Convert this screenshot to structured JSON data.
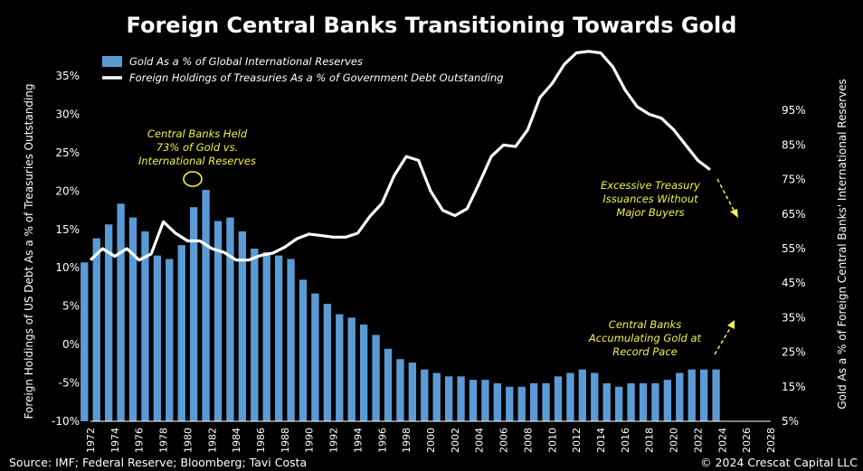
{
  "chart_data": {
    "type": "bar+line",
    "title": "Foreign Central Banks Transitioning Towards Gold",
    "ylabel_left": "Foreign Holdings of US Debt As a % of  Treasuries Outstanding",
    "ylabel_right": "Gold As a % of Foreign Central Banks' International Reserves",
    "left_ticks": [
      "35%",
      "30%",
      "25%",
      "20%",
      "15%",
      "10%",
      "5%",
      "0%",
      "-5%",
      "-10%"
    ],
    "right_ticks": [
      "95%",
      "85%",
      "75%",
      "65%",
      "55%",
      "45%",
      "35%",
      "25%",
      "15%",
      "5%"
    ],
    "left_ylim": [
      -10,
      35
    ],
    "right_ylim": [
      5,
      105
    ],
    "xlim": [
      1972,
      2028
    ],
    "x_ticks": [
      "1972",
      "1974",
      "1976",
      "1978",
      "1980",
      "1982",
      "1984",
      "1986",
      "1988",
      "1990",
      "1992",
      "1994",
      "1996",
      "1998",
      "2000",
      "2002",
      "2004",
      "2006",
      "2008",
      "2010",
      "2012",
      "2014",
      "2016",
      "2018",
      "2020",
      "2022",
      "2024",
      "2026",
      "2028"
    ],
    "grid": false,
    "legend_position": "top-left",
    "series": [
      {
        "name": "Gold As a % of Global International Reserves",
        "type": "bar",
        "axis": "right",
        "color": "#5b9bd5",
        "x": [
          1971.5,
          1972.5,
          1973.5,
          1974.5,
          1975.5,
          1976.5,
          1977.5,
          1978.5,
          1979.5,
          1980.5,
          1981.5,
          1982.5,
          1983.5,
          1984.5,
          1985.5,
          1986.5,
          1987.5,
          1988.5,
          1989.5,
          1990.5,
          1991.5,
          1992.5,
          1993.5,
          1994.5,
          1995.5,
          1996.5,
          1997.5,
          1998.5,
          1999.5,
          2000.5,
          2001.5,
          2002.5,
          2003.5,
          2004.5,
          2005.5,
          2006.5,
          2007.5,
          2008.5,
          2009.5,
          2010.5,
          2011.5,
          2012.5,
          2013.5,
          2014.5,
          2015.5,
          2016.5,
          2017.5,
          2018.5,
          2019.5,
          2020.5,
          2021.5,
          2022.5,
          2023.5
        ],
        "values": [
          51,
          58,
          62,
          68,
          64,
          60,
          53,
          52,
          56,
          67,
          72,
          63,
          64,
          60,
          55,
          54,
          53,
          52,
          46,
          42,
          39,
          36,
          35,
          33,
          30,
          26,
          23,
          22,
          20,
          19,
          18,
          18,
          17,
          17,
          16,
          15,
          15,
          16,
          16,
          18,
          19,
          20,
          19,
          16,
          15,
          16,
          16,
          16,
          17,
          19,
          20,
          20,
          20
        ]
      },
      {
        "name": "Foreign Holdings of Treasuries As a % of Government Debt Outstanding",
        "type": "line",
        "axis": "left",
        "color": "#ffffff",
        "x": [
          1972,
          1973,
          1974,
          1975,
          1976,
          1977,
          1978,
          1979,
          1980,
          1981,
          1982,
          1983,
          1984,
          1985,
          1986,
          1987,
          1988,
          1989,
          1990,
          1991,
          1992,
          1993,
          1994,
          1995,
          1996,
          1997,
          1998,
          1999,
          2000,
          2001,
          2002,
          2003,
          2004,
          2005,
          2006,
          2007,
          2008,
          2009,
          2010,
          2011,
          2012,
          2013,
          2014,
          2015,
          2016,
          2017,
          2018,
          2019,
          2020,
          2021,
          2022,
          2023
        ],
        "values": [
          11,
          12.5,
          11.5,
          12.5,
          11,
          11.8,
          16,
          14.5,
          13.5,
          13.5,
          12.5,
          12,
          11,
          11,
          11.6,
          11.9,
          12.7,
          13.8,
          14.4,
          14.2,
          14,
          14,
          14.5,
          16.7,
          18.4,
          22,
          24.5,
          24,
          20,
          17.5,
          16.8,
          17.7,
          21,
          24.5,
          26,
          25.8,
          28,
          32.2,
          34,
          36.5,
          38,
          38.2,
          38,
          36.2,
          33.2,
          31,
          30,
          29.5,
          28,
          26,
          24,
          22.8
        ]
      }
    ],
    "annotations": [
      [
        "Central Banks Held",
        "73% of Gold vs.",
        "International Reserves"
      ],
      [
        "Excessive Treasury",
        "Issuances Without",
        "Major Buyers"
      ],
      [
        "Central Banks",
        "Accumulating Gold at",
        "Record Pace"
      ]
    ]
  },
  "footer": {
    "source": "Source: IMF; Federal Reserve; Bloomberg; Tavi Costa",
    "copyright": "© 2024 Crescat Capital LLC"
  }
}
